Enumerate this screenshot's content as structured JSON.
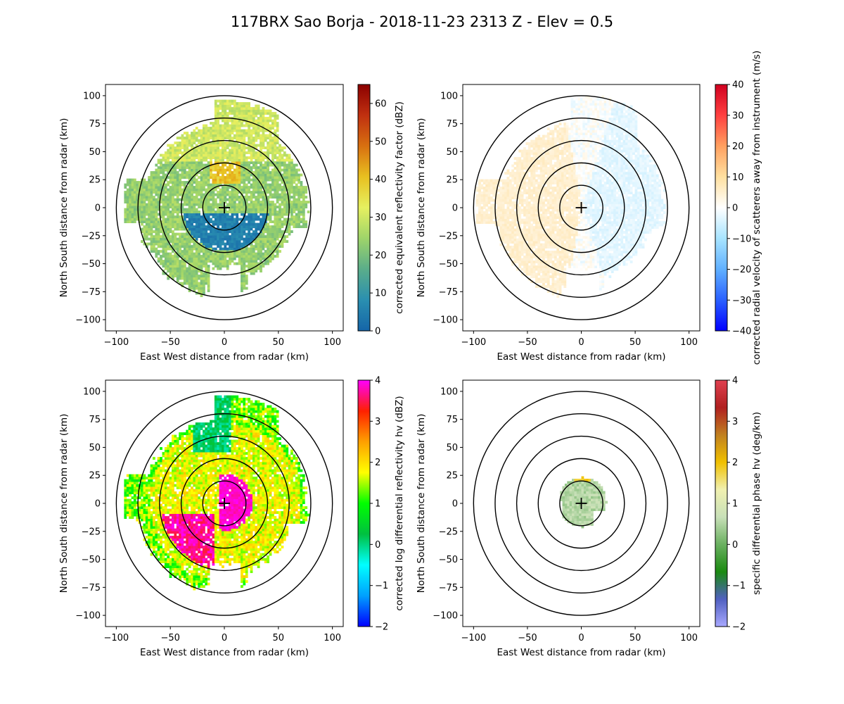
{
  "figure": {
    "title": "117BRX Sao Borja - 2018-11-23 2313 Z -  Elev = 0.5"
  },
  "chart_data": [
    {
      "type": "heatmap",
      "id": "reflectivity",
      "variable": "corrected equivalent reflectivity factor",
      "colorbar_label": "corrected equivalent reflectivity factor (dBZ)",
      "xlabel": "East West distance from radar (km)",
      "ylabel": "North South distance from radar (km)",
      "xlim": [
        -110,
        110
      ],
      "ylim": [
        -110,
        110
      ],
      "xticks": [
        -100,
        -50,
        0,
        50,
        100
      ],
      "yticks": [
        -100,
        -75,
        -50,
        -25,
        0,
        25,
        50,
        75,
        100
      ],
      "range_rings_km": [
        20,
        40,
        60,
        80,
        100
      ],
      "colorbar_range": [
        0,
        65
      ],
      "colorbar_ticks": [
        0,
        10,
        20,
        30,
        40,
        50,
        60
      ],
      "colormap_stops": [
        "#1565a8",
        "#2a8fb0",
        "#5aad8a",
        "#9ed46a",
        "#e6f060",
        "#e8c020",
        "#d87010",
        "#c03010",
        "#8b0000"
      ],
      "echo_max_range_km": 95,
      "cell_opacity": 1
    },
    {
      "type": "heatmap",
      "id": "velocity",
      "variable": "corrected radial velocity of scatterers away from instrument",
      "colorbar_label": "corrected radial velocity of scatterers away from instrument (m/s)",
      "xlabel": "East West distance from radar (km)",
      "ylabel": "North South distance from radar (km)",
      "xlim": [
        -110,
        110
      ],
      "ylim": [
        -110,
        110
      ],
      "xticks": [
        -100,
        -50,
        0,
        50,
        100
      ],
      "yticks": [
        -100,
        -75,
        -50,
        -25,
        0,
        25,
        50,
        75,
        100
      ],
      "range_rings_km": [
        20,
        40,
        60,
        80,
        100
      ],
      "colorbar_range": [
        -40,
        40
      ],
      "colorbar_ticks": [
        -40,
        -30,
        -20,
        -10,
        0,
        10,
        20,
        30,
        40
      ],
      "colormap_stops": [
        "#0000ff",
        "#2a60ff",
        "#60b0ff",
        "#a8e4ff",
        "#ffffff",
        "#ffe0a0",
        "#ffa060",
        "#ff4040",
        "#d00020"
      ],
      "echo_max_range_km": 100,
      "cell_opacity": 0.75
    },
    {
      "type": "heatmap",
      "id": "zdr",
      "variable": "corrected log differential reflectivity hv",
      "colorbar_label": "corrected log differential reflectivity hv (dBZ)",
      "xlabel": "East West distance from radar (km)",
      "ylabel": "North South distance from radar (km)",
      "xlim": [
        -110,
        110
      ],
      "ylim": [
        -110,
        110
      ],
      "xticks": [
        -100,
        -50,
        0,
        50,
        100
      ],
      "yticks": [
        -100,
        -75,
        -50,
        -25,
        0,
        25,
        50,
        75,
        100
      ],
      "range_rings_km": [
        20,
        40,
        60,
        80,
        100
      ],
      "colorbar_range": [
        -2,
        4
      ],
      "colorbar_ticks": [
        -2,
        -1,
        0,
        1,
        2,
        3,
        4
      ],
      "colormap_stops": [
        "#0000ff",
        "#00a0ff",
        "#00ffff",
        "#00c040",
        "#00ff00",
        "#ffff00",
        "#ffa000",
        "#ff2000",
        "#ff00ff"
      ],
      "echo_max_range_km": 95,
      "cell_opacity": 1
    },
    {
      "type": "heatmap",
      "id": "kdp",
      "variable": "specific differential phase hv",
      "colorbar_label": "specific differential phase hv (deg/km)",
      "xlabel": "East West distance from radar (km)",
      "ylabel": "North South distance from radar (km)",
      "xlim": [
        -110,
        110
      ],
      "ylim": [
        -110,
        110
      ],
      "xticks": [
        -100,
        -50,
        0,
        50,
        100
      ],
      "yticks": [
        -100,
        -75,
        -50,
        -25,
        0,
        25,
        50,
        75,
        100
      ],
      "range_rings_km": [
        20,
        40,
        60,
        80,
        100
      ],
      "colorbar_range": [
        -2,
        4
      ],
      "colorbar_ticks": [
        -2,
        -1,
        0,
        1,
        2,
        3,
        4
      ],
      "colormap_stops": [
        "#a8a8ff",
        "#5060c0",
        "#1a8a10",
        "#6ab060",
        "#c8e0b8",
        "#f0f0b0",
        "#f0c000",
        "#c08020",
        "#b02020",
        "#e04050"
      ],
      "echo_max_range_km": 22,
      "cell_opacity": 1
    }
  ]
}
